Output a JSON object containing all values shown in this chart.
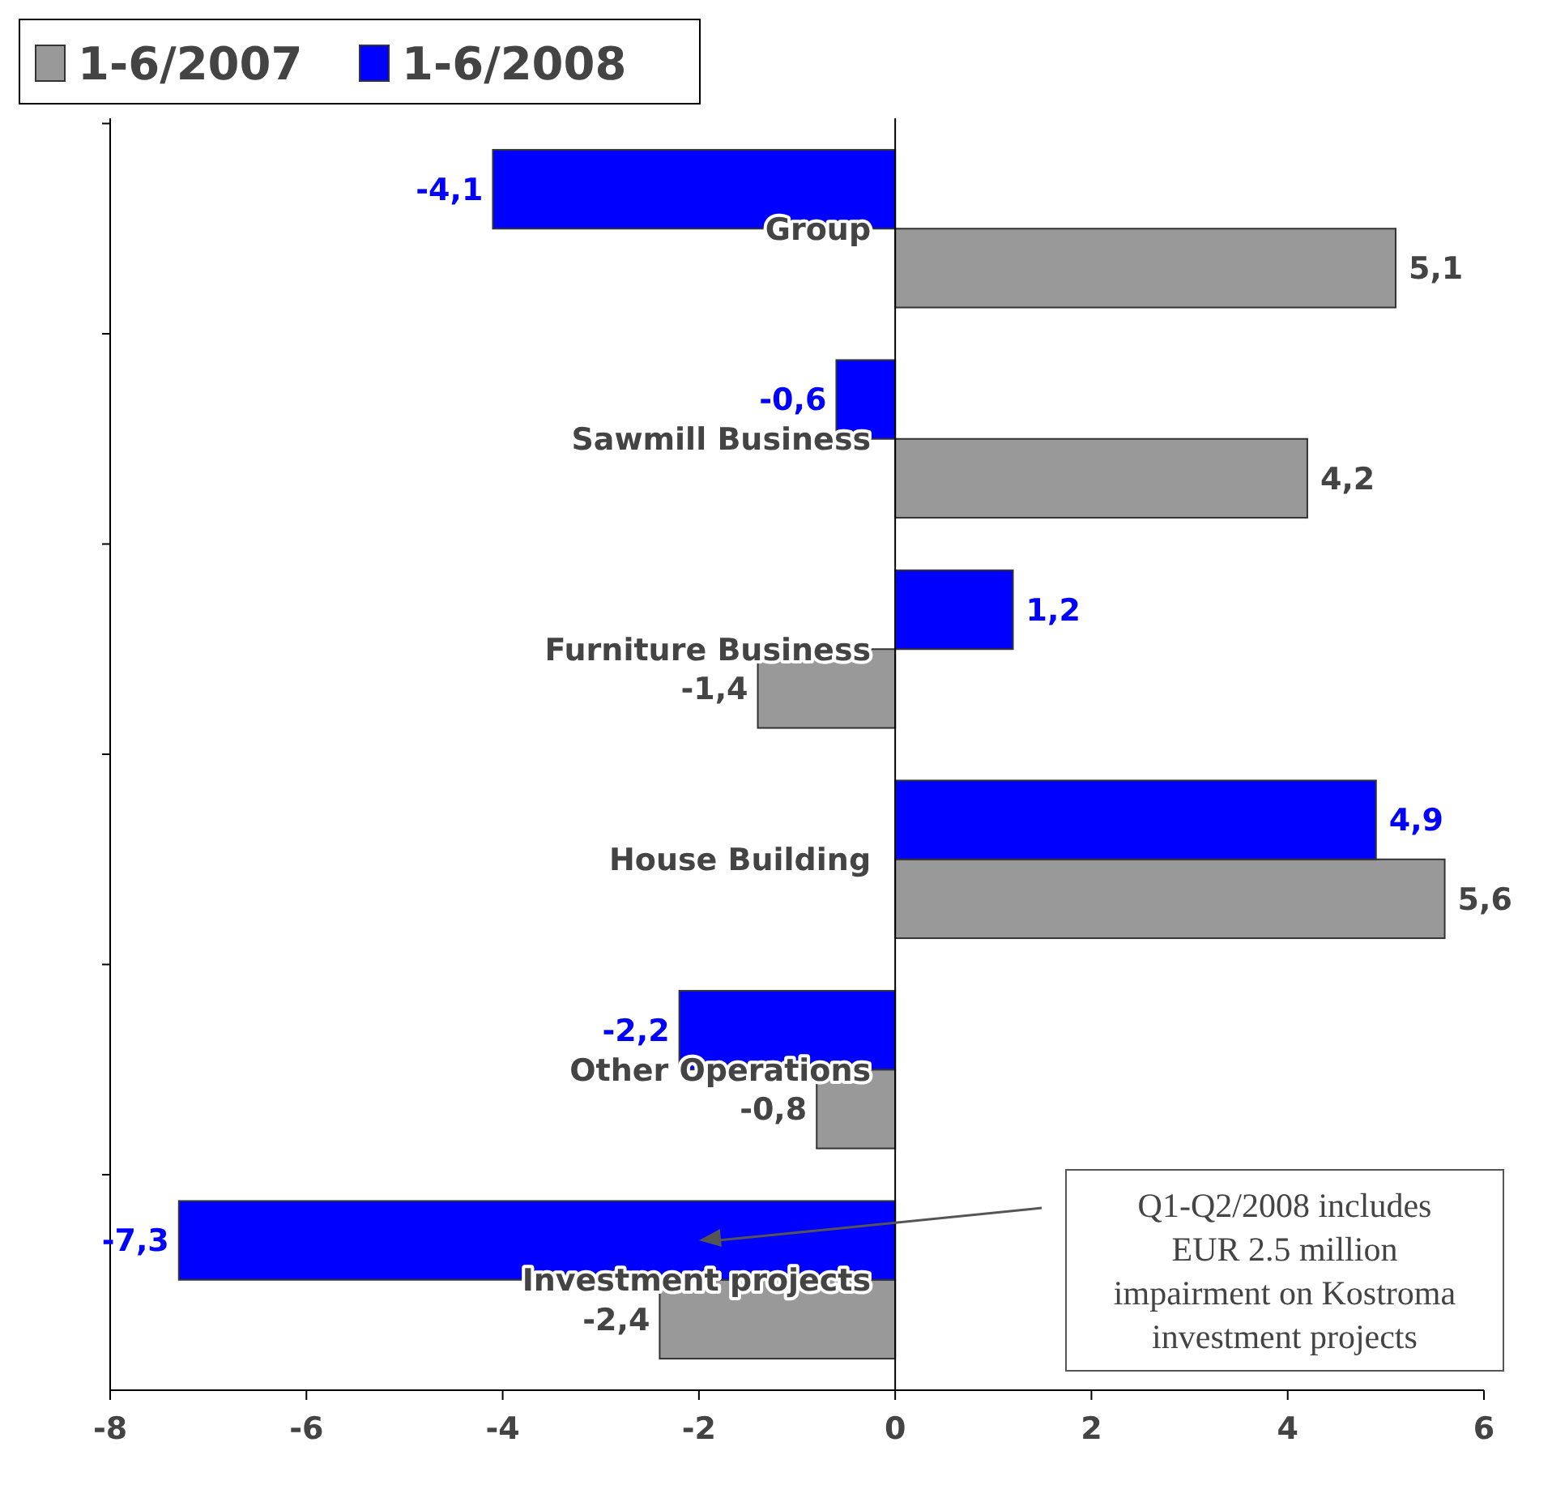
{
  "chart_data": {
    "type": "bar",
    "orientation": "horizontal",
    "categories": [
      "Group",
      "Sawmill Business",
      "Furniture Business",
      "House Building",
      "Other Operations",
      "Investment projects"
    ],
    "series": [
      {
        "name": "1-6/2007",
        "color": "#999999",
        "values": [
          5.1,
          4.2,
          -1.4,
          5.6,
          -0.8,
          -2.4
        ],
        "value_labels": [
          "5,1",
          "4,2",
          "-1,4",
          "5,6",
          "-0,8",
          "-2,4"
        ]
      },
      {
        "name": "1-6/2008",
        "color": "#0000ff",
        "values": [
          -4.1,
          -0.6,
          1.2,
          4.9,
          -2.2,
          -7.3
        ],
        "value_labels": [
          "-4,1",
          "-0,6",
          "1,2",
          "4,9",
          "-2,2",
          "-7,3"
        ]
      }
    ],
    "xlim": [
      -8,
      6
    ],
    "xticks": [
      -8,
      -6,
      -4,
      -2,
      0,
      2,
      4,
      6
    ],
    "legend": "top left",
    "grid": false,
    "annotations": [
      "Q1-Q2/2008 includes EUR 2.5 million impairment on Kostroma investment projects"
    ]
  }
}
